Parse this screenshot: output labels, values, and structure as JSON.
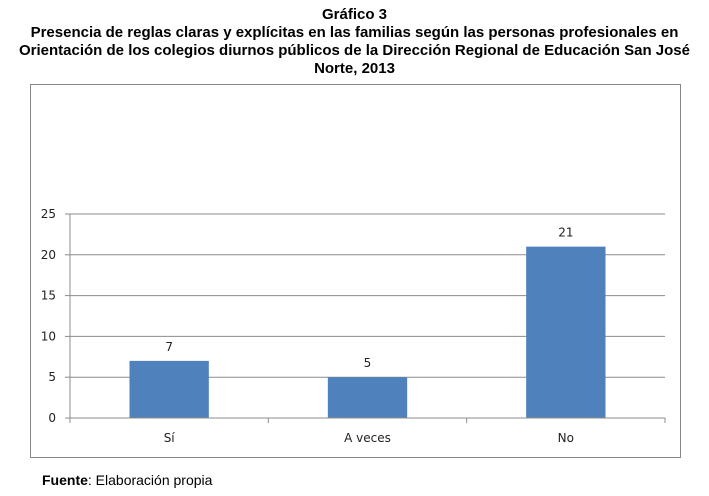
{
  "title": {
    "line1": "Gráfico 3",
    "line2": "Presencia de reglas claras y explícitas en las familias según las personas profesionales en",
    "line3": "Orientación de los colegios diurnos públicos de la Dirección Regional de Educación San José",
    "line4": "Norte, 2013"
  },
  "source": {
    "label": "Fuente",
    "text": ": Elaboración propia"
  },
  "chart_data": {
    "type": "bar",
    "categories": [
      "Sí",
      "A veces",
      "No"
    ],
    "values": [
      7,
      5,
      21
    ],
    "ylim": [
      0,
      25
    ],
    "yticks": [
      0,
      5,
      10,
      15,
      20,
      25
    ],
    "grid": true,
    "legend": "none",
    "bar_color": "#4f81bd",
    "grid_color": "#8c8c8c"
  }
}
